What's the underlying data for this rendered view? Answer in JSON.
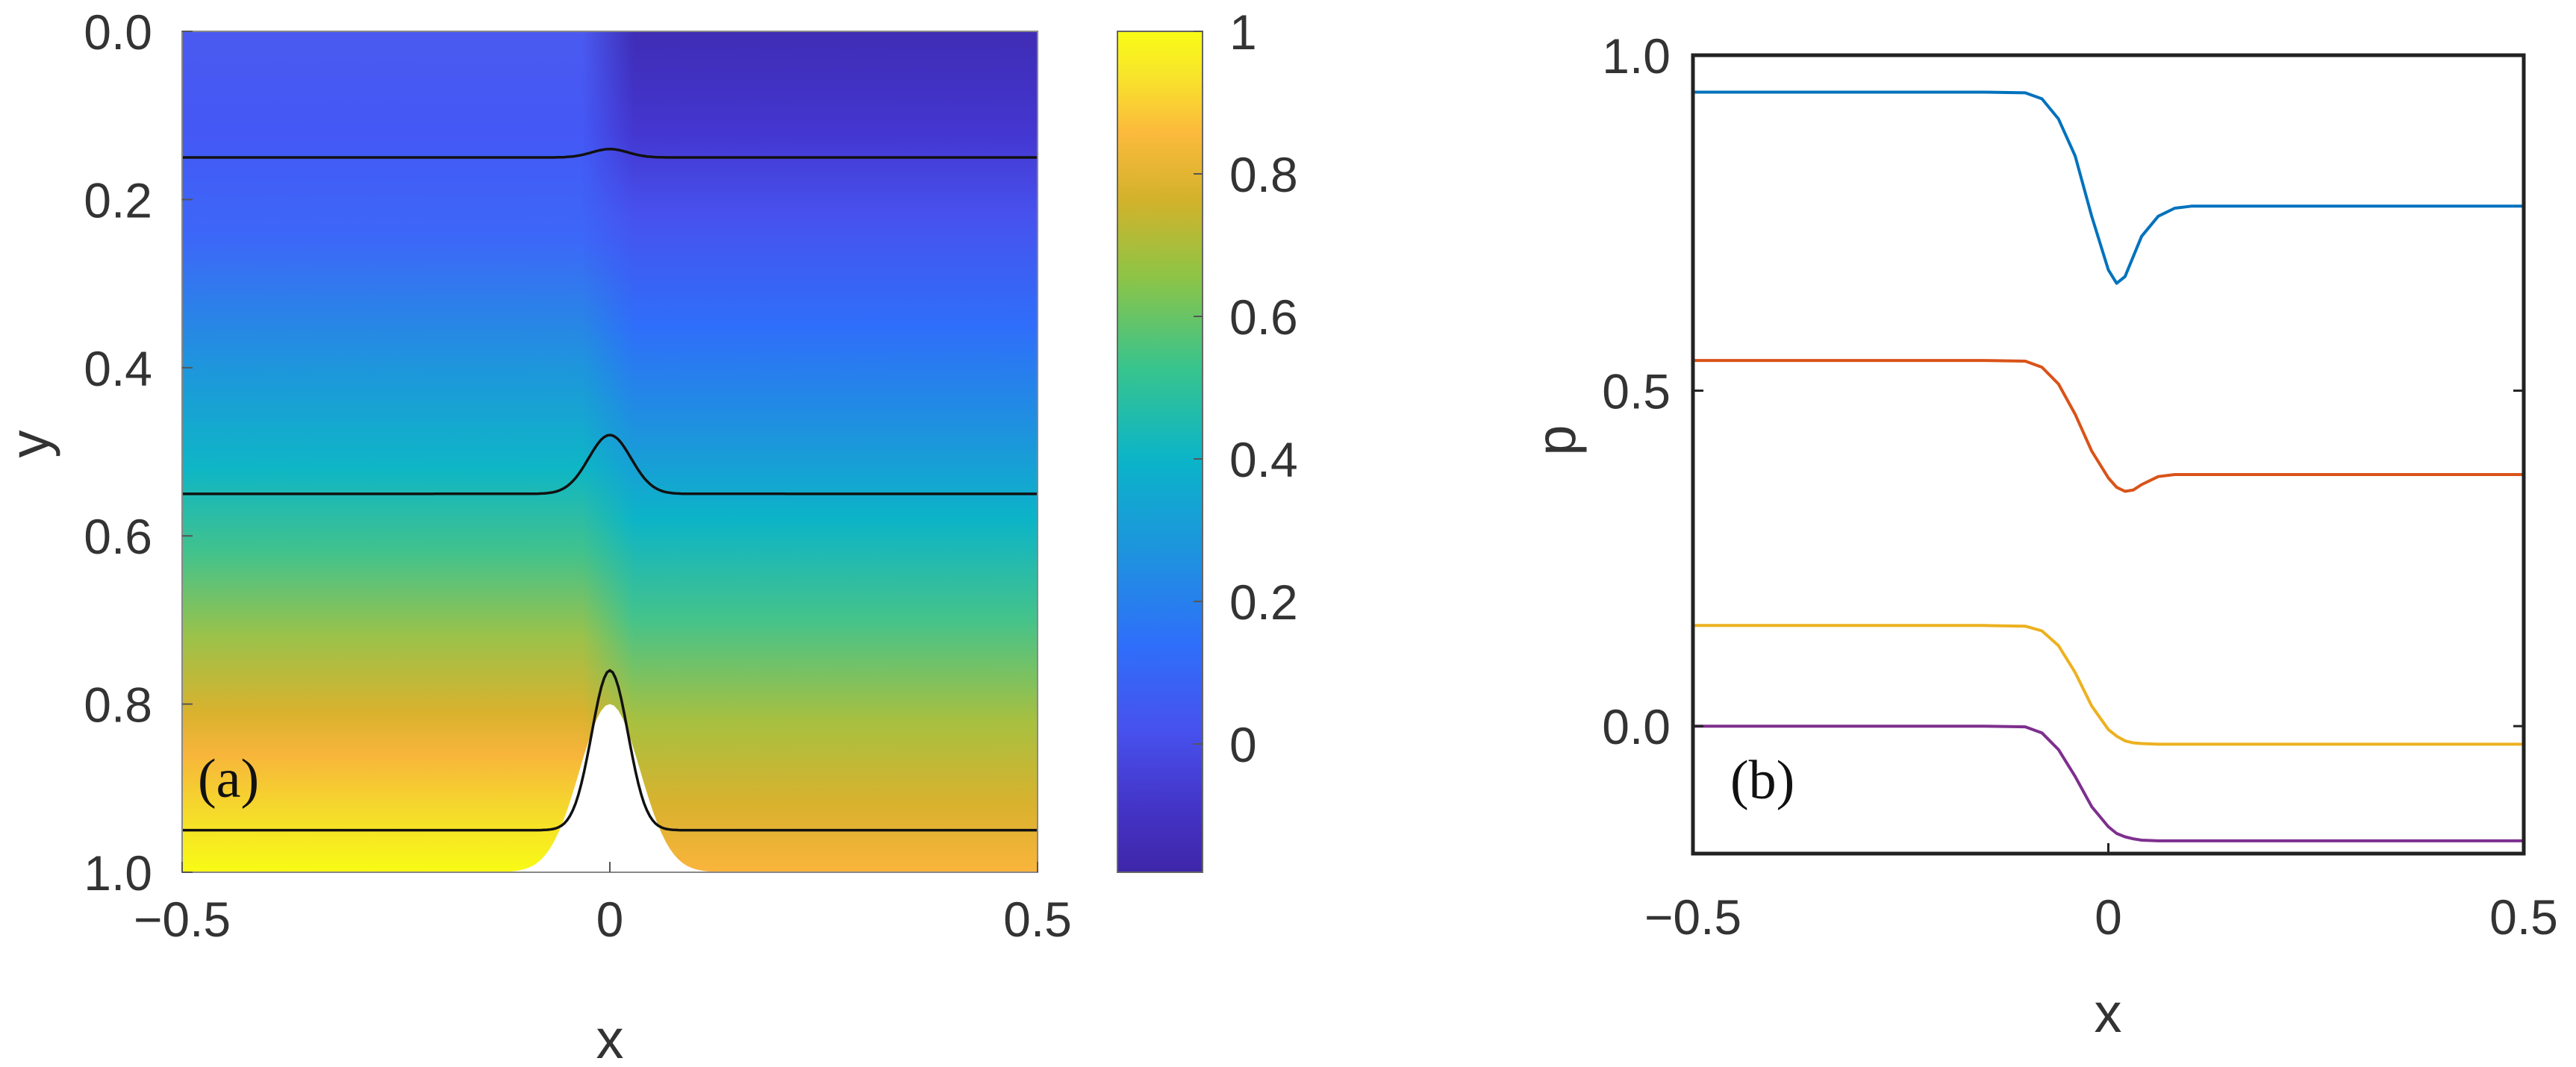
{
  "colors": {
    "blue": "#0072BD",
    "orange": "#D95319",
    "yellow": "#EDB120",
    "purple": "#7E2F8E",
    "contour": "#111111"
  },
  "colorbar": {
    "colormap": "parula",
    "range": [
      -0.18,
      1.0
    ],
    "tick_values": [
      1,
      0.8,
      0.6,
      0.4,
      0.2,
      0
    ],
    "tick_labels": [
      "1",
      "0.8",
      "0.6",
      "0.4",
      "0.2",
      "0"
    ]
  },
  "chart_data": [
    {
      "panel": "(a)",
      "type": "heatmap",
      "xlabel": "x",
      "ylabel": "y",
      "xlim": [
        -0.5,
        0.5
      ],
      "ylim": [
        0.0,
        1.0
      ],
      "y_reversed": true,
      "xticks": [
        -0.5,
        0,
        0.5
      ],
      "xtick_labels": [
        "−0.5",
        "0",
        "0.5"
      ],
      "yticks": [
        0.0,
        0.2,
        0.4,
        0.6,
        0.8,
        1.0
      ],
      "ytick_labels": [
        "0.0",
        "0.2",
        "0.4",
        "0.6",
        "0.8",
        "1.0"
      ],
      "obstacle": {
        "center_x": 0.0,
        "height": 0.2,
        "width": 0.05,
        "base_y": 1.0
      },
      "contour_lines": [
        {
          "y_far": 0.15,
          "bump_height": 0.01,
          "bump_width": 0.03
        },
        {
          "y_far": 0.55,
          "bump_height": 0.07,
          "bump_width": 0.035
        },
        {
          "y_far": 0.95,
          "bump_height": 0.19,
          "bump_width": 0.03
        }
      ]
    },
    {
      "panel": "(b)",
      "type": "line",
      "xlabel": "x",
      "ylabel": "p",
      "xlim": [
        -0.5,
        0.5
      ],
      "ylim": [
        -0.19,
        1.0
      ],
      "xticks": [
        -0.5,
        0,
        0.5
      ],
      "xtick_labels": [
        "−0.5",
        "0",
        "0.5"
      ],
      "yticks": [
        0.0,
        0.5,
        1.0
      ],
      "ytick_labels": [
        "0.0",
        "0.5",
        "1.0"
      ],
      "x": [
        -0.5,
        -0.4,
        -0.3,
        -0.2,
        -0.15,
        -0.1,
        -0.08,
        -0.06,
        -0.04,
        -0.02,
        0.0,
        0.01,
        0.02,
        0.03,
        0.04,
        0.06,
        0.08,
        0.1,
        0.15,
        0.2,
        0.3,
        0.4,
        0.5
      ],
      "series": [
        {
          "values": [
            0.945,
            0.945,
            0.945,
            0.945,
            0.945,
            0.944,
            0.935,
            0.905,
            0.85,
            0.76,
            0.68,
            0.66,
            0.67,
            0.7,
            0.73,
            0.76,
            0.772,
            0.775,
            0.775,
            0.775,
            0.775,
            0.775,
            0.775
          ],
          "color": "blue"
        },
        {
          "values": [
            0.545,
            0.545,
            0.545,
            0.545,
            0.545,
            0.544,
            0.535,
            0.51,
            0.465,
            0.41,
            0.37,
            0.356,
            0.35,
            0.352,
            0.36,
            0.372,
            0.375,
            0.375,
            0.375,
            0.375,
            0.375,
            0.375,
            0.375
          ],
          "color": "orange"
        },
        {
          "values": [
            0.15,
            0.15,
            0.15,
            0.15,
            0.15,
            0.149,
            0.142,
            0.12,
            0.08,
            0.03,
            -0.005,
            -0.015,
            -0.022,
            -0.025,
            -0.026,
            -0.027,
            -0.027,
            -0.027,
            -0.027,
            -0.027,
            -0.027,
            -0.027,
            -0.027
          ],
          "color": "yellow"
        },
        {
          "values": [
            0.0,
            0.0,
            0.0,
            0.0,
            0.0,
            -0.001,
            -0.01,
            -0.035,
            -0.075,
            -0.12,
            -0.15,
            -0.16,
            -0.165,
            -0.168,
            -0.17,
            -0.171,
            -0.171,
            -0.171,
            -0.171,
            -0.171,
            -0.171,
            -0.171,
            -0.171
          ],
          "color": "purple"
        }
      ]
    }
  ]
}
